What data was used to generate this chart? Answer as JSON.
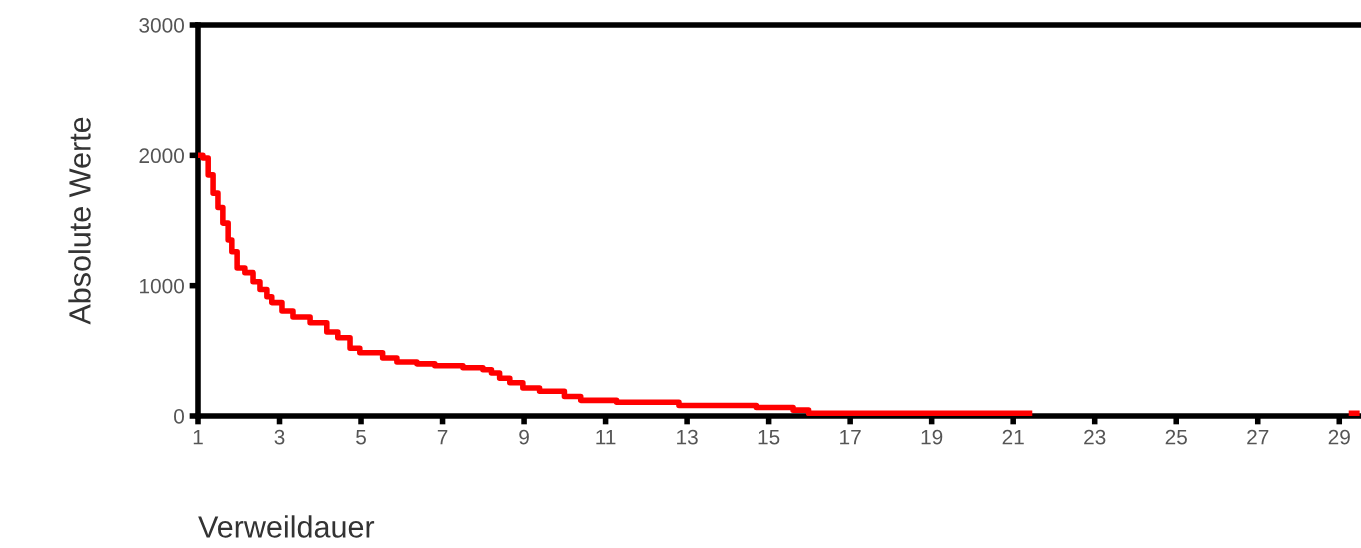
{
  "chart_data": {
    "type": "step",
    "xlabel": "Verweildauer",
    "ylabel": "Absolute Werte",
    "xlim": [
      1,
      29.5
    ],
    "xticks": [
      1,
      3,
      5,
      7,
      9,
      11,
      13,
      15,
      17,
      19,
      21,
      23,
      25,
      27,
      29
    ],
    "ylim": [
      0,
      3000
    ],
    "yticks": [
      0,
      1000,
      2000,
      3000
    ],
    "grid": false,
    "legend": false,
    "marker": "none",
    "line_style": "solid",
    "series": [
      {
        "color": "#ff0000",
        "x": [
          1.0,
          1.12,
          1.25,
          1.37,
          1.49,
          1.61,
          1.74,
          1.83,
          1.96,
          2.15,
          2.35,
          2.52,
          2.69,
          2.81,
          3.06,
          3.33,
          3.75,
          4.16,
          4.43,
          4.73,
          4.97,
          5.53,
          5.88,
          6.37,
          6.81,
          7.5,
          7.99,
          8.2,
          8.4,
          8.65,
          8.97,
          9.38,
          9.99,
          10.39,
          11.27,
          12.8,
          14.7,
          15.6,
          15.98,
          21.4,
          29.3,
          29.45
        ],
        "values": [
          2000,
          1980,
          1850,
          1710,
          1600,
          1480,
          1350,
          1260,
          1135,
          1100,
          1030,
          970,
          915,
          870,
          805,
          760,
          715,
          645,
          600,
          520,
          485,
          445,
          415,
          400,
          385,
          370,
          355,
          330,
          290,
          255,
          215,
          190,
          150,
          120,
          105,
          80,
          65,
          45,
          20,
          null,
          20,
          20
        ]
      }
    ]
  }
}
